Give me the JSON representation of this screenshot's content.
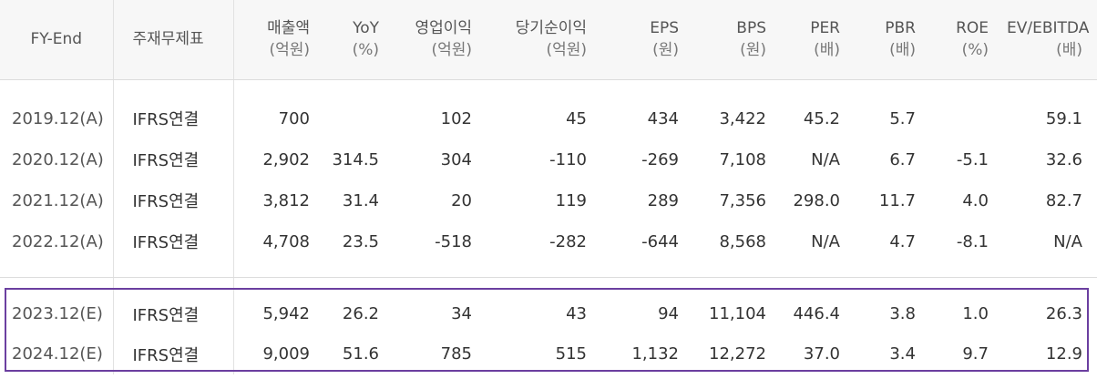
{
  "headers": {
    "fy": {
      "label": "FY-End",
      "unit": ""
    },
    "fin": {
      "label": "주재무제표",
      "unit": ""
    },
    "sales": {
      "label": "매출액",
      "unit": "(억원)"
    },
    "yoy": {
      "label": "YoY",
      "unit": "(%)"
    },
    "op": {
      "label": "영업이익",
      "unit": "(억원)"
    },
    "net": {
      "label": "당기순이익",
      "unit": "(억원)"
    },
    "eps": {
      "label": "EPS",
      "unit": "(원)"
    },
    "bps": {
      "label": "BPS",
      "unit": "(원)"
    },
    "per": {
      "label": "PER",
      "unit": "(배)"
    },
    "pbr": {
      "label": "PBR",
      "unit": "(배)"
    },
    "roe": {
      "label": "ROE",
      "unit": "(%)"
    },
    "ev": {
      "label": "EV/EBITDA",
      "unit": "(배)"
    }
  },
  "actual_rows": [
    {
      "fy": "2019.12(A)",
      "fin": "IFRS연결",
      "sales": "700",
      "yoy": "",
      "op": "102",
      "net": "45",
      "eps": "434",
      "bps": "3,422",
      "per": "45.2",
      "pbr": "5.7",
      "roe": "",
      "ev": "59.1"
    },
    {
      "fy": "2020.12(A)",
      "fin": "IFRS연결",
      "sales": "2,902",
      "yoy": "314.5",
      "op": "304",
      "net": "-110",
      "eps": "-269",
      "bps": "7,108",
      "per": "N/A",
      "pbr": "6.7",
      "roe": "-5.1",
      "ev": "32.6"
    },
    {
      "fy": "2021.12(A)",
      "fin": "IFRS연결",
      "sales": "3,812",
      "yoy": "31.4",
      "op": "20",
      "net": "119",
      "eps": "289",
      "bps": "7,356",
      "per": "298.0",
      "pbr": "11.7",
      "roe": "4.0",
      "ev": "82.7"
    },
    {
      "fy": "2022.12(A)",
      "fin": "IFRS연결",
      "sales": "4,708",
      "yoy": "23.5",
      "op": "-518",
      "net": "-282",
      "eps": "-644",
      "bps": "8,568",
      "per": "N/A",
      "pbr": "4.7",
      "roe": "-8.1",
      "ev": "N/A"
    }
  ],
  "estimate_rows": [
    {
      "fy": "2023.12(E)",
      "fin": "IFRS연결",
      "sales": "5,942",
      "yoy": "26.2",
      "op": "34",
      "net": "43",
      "eps": "94",
      "bps": "11,104",
      "per": "446.4",
      "pbr": "3.8",
      "roe": "1.0",
      "ev": "26.3"
    },
    {
      "fy": "2024.12(E)",
      "fin": "IFRS연결",
      "sales": "9,009",
      "yoy": "51.6",
      "op": "785",
      "net": "515",
      "eps": "1,132",
      "bps": "12,272",
      "per": "37.0",
      "pbr": "3.4",
      "roe": "9.7",
      "ev": "12.9"
    }
  ],
  "colors": {
    "highlight_border": "#6b3fa0",
    "header_bg": "#f7f7f7"
  }
}
